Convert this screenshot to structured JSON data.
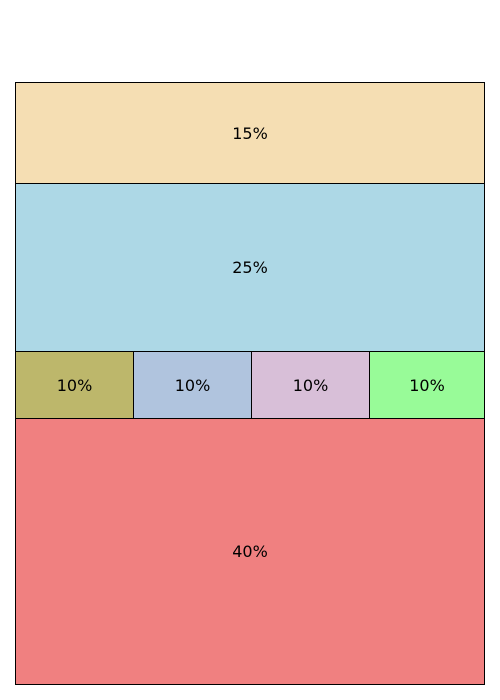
{
  "chart_data": {
    "type": "table",
    "rows": [
      {
        "height_share": 15,
        "cells": [
          {
            "label": "15%",
            "value": 15,
            "color": "#f5deb3"
          }
        ]
      },
      {
        "height_share": 25,
        "cells": [
          {
            "label": "25%",
            "value": 25,
            "color": "#add8e6"
          }
        ]
      },
      {
        "height_share": 10,
        "cells": [
          {
            "label": "10%",
            "value": 10,
            "color": "#bdb76b"
          },
          {
            "label": "10%",
            "value": 10,
            "color": "#b0c4de"
          },
          {
            "label": "10%",
            "value": 10,
            "color": "#d8bfd8"
          },
          {
            "label": "10%",
            "value": 10,
            "color": "#98fb98"
          }
        ]
      },
      {
        "height_share": 40,
        "cells": [
          {
            "label": "40%",
            "value": 40,
            "color": "#f08080"
          }
        ]
      }
    ]
  }
}
